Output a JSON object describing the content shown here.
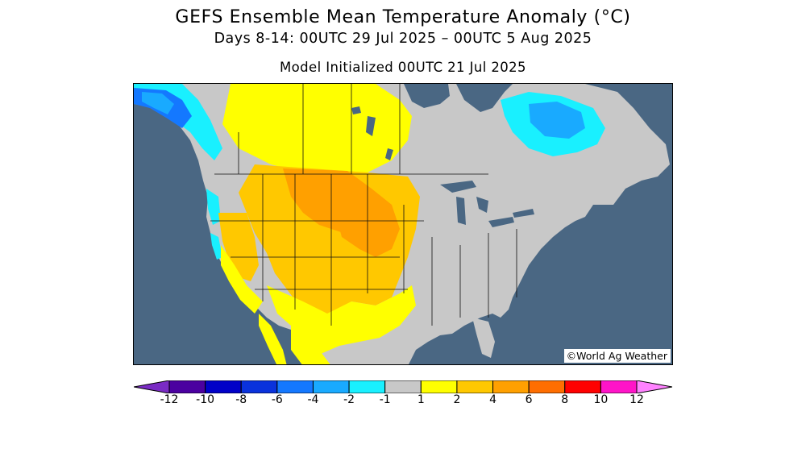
{
  "header": {
    "title": "GEFS Ensemble Mean Temperature Anomaly (°C)",
    "period": "Days 8-14: 00UTC 29 Jul 2025 – 00UTC 5 Aug 2025",
    "init": "Model Initialized 00UTC 21 Jul 2025"
  },
  "map": {
    "credit": "©World Ag Weather",
    "region": "North America",
    "colors": {
      "ocean": "#4a6783",
      "neutral": "#c8c8c8",
      "border": "#111111"
    },
    "anomaly_regions": [
      {
        "area": "Northern Plains / Dakotas / Nebraska / Kansas",
        "anomaly_bin": "4 to 6"
      },
      {
        "area": "Rockies / Intermountain West / Southwest / Texas",
        "anomaly_bin": "2 to 4"
      },
      {
        "area": "Central Canada (Saskatchewan / Manitoba)",
        "anomaly_bin": "1 to 4"
      },
      {
        "area": "Eastern US / Great Lakes / Southeast",
        "anomaly_bin": "-1 to 1"
      },
      {
        "area": "Quebec / Labrador",
        "anomaly_bin": "-4 to -1"
      },
      {
        "area": "British Columbia / Alaska panhandle",
        "anomaly_bin": "-6 to -1"
      }
    ]
  },
  "legend": {
    "ticks": [
      "-12",
      "-10",
      "-8",
      "-6",
      "-4",
      "-2",
      "-1",
      "1",
      "2",
      "4",
      "6",
      "8",
      "10",
      "12"
    ],
    "colors": [
      "#7a2bc4",
      "#4b00a0",
      "#0000c8",
      "#0a32dc",
      "#1478ff",
      "#19aaff",
      "#19f0ff",
      "#c8c8c8",
      "#ffff00",
      "#ffc800",
      "#ffa000",
      "#ff6e00",
      "#ff0000",
      "#ff14c8",
      "#ff82ff"
    ]
  }
}
